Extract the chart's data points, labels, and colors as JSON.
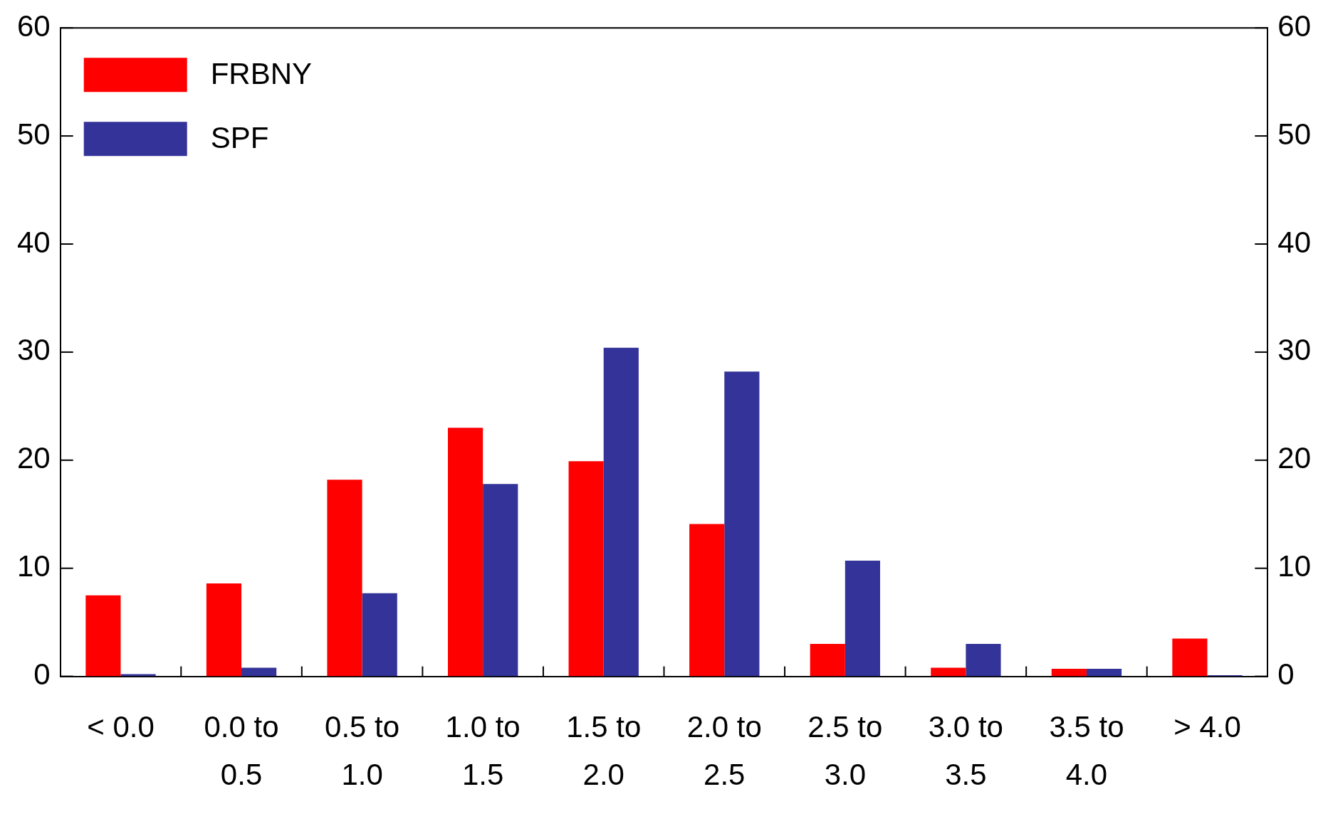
{
  "chart_data": {
    "type": "bar",
    "categories": [
      "< 0.0",
      "0.0 to 0.5",
      "0.5 to 1.0",
      "1.0 to 1.5",
      "1.5 to 2.0",
      "2.0 to 2.5",
      "2.5 to 3.0",
      "3.0 to 3.5",
      "3.5 to 4.0",
      "> 4.0"
    ],
    "series": [
      {
        "name": "FRBNY",
        "color": "#ff0000",
        "values": [
          7.5,
          8.6,
          18.2,
          23.0,
          19.9,
          14.1,
          3.0,
          0.8,
          0.7,
          3.5
        ]
      },
      {
        "name": "SPF",
        "color": "#333399",
        "values": [
          0.2,
          0.8,
          7.7,
          17.8,
          30.4,
          28.2,
          10.7,
          3.0,
          0.7,
          0.1
        ]
      }
    ],
    "ylim": [
      0,
      60
    ],
    "yticks": [
      0,
      10,
      20,
      30,
      40,
      50,
      60
    ],
    "y2lim": [
      0,
      60
    ],
    "y2ticks": [
      0,
      10,
      20,
      30,
      40,
      50,
      60
    ],
    "grid": false,
    "legend": "top left"
  }
}
